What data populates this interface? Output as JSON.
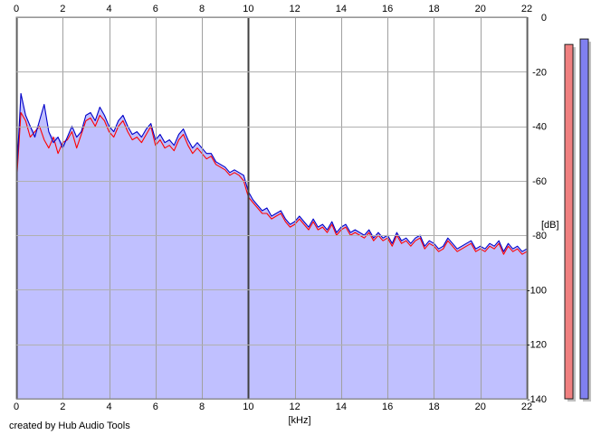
{
  "credit": "created by Hub Audio Tools",
  "chart_data": {
    "type": "area",
    "xlabel": "[kHz]",
    "ylabel": "[dB]",
    "xlim": [
      0,
      22
    ],
    "ylim": [
      -140,
      0
    ],
    "x_ticks": [
      "0",
      "2",
      "4",
      "6",
      "8",
      "10",
      "12",
      "14",
      "16",
      "18",
      "20",
      "22"
    ],
    "y_ticks": [
      "0",
      "-20",
      "-40",
      "-60",
      "-80",
      "-100",
      "-120",
      "-140"
    ],
    "grid": true,
    "background_color": "#ffffff",
    "fill_color": "#c0c0ff",
    "series": [
      {
        "color": "#ff0000",
        "x": [
          0.0,
          0.2,
          0.4,
          0.6,
          0.8,
          1.0,
          1.2,
          1.4,
          1.6,
          1.8,
          2.0,
          2.2,
          2.4,
          2.6,
          2.8,
          3.0,
          3.2,
          3.4,
          3.6,
          3.8,
          4.0,
          4.2,
          4.4,
          4.6,
          4.8,
          5.0,
          5.2,
          5.4,
          5.6,
          5.8,
          6.0,
          6.2,
          6.4,
          6.6,
          6.8,
          7.0,
          7.2,
          7.4,
          7.6,
          7.8,
          8.0,
          8.2,
          8.4,
          8.6,
          8.8,
          9.0,
          9.2,
          9.4,
          9.6,
          9.8,
          10.0,
          10.2,
          10.4,
          10.6,
          10.8,
          11.0,
          11.2,
          11.4,
          11.6,
          11.8,
          12.0,
          12.2,
          12.4,
          12.6,
          12.8,
          13.0,
          13.2,
          13.4,
          13.6,
          13.8,
          14.0,
          14.2,
          14.4,
          14.6,
          14.8,
          15.0,
          15.2,
          15.4,
          15.6,
          15.8,
          16.0,
          16.2,
          16.4,
          16.6,
          16.8,
          17.0,
          17.2,
          17.4,
          17.6,
          17.8,
          18.0,
          18.2,
          18.4,
          18.6,
          18.8,
          19.0,
          19.2,
          19.4,
          19.6,
          19.8,
          20.0,
          20.2,
          20.4,
          20.6,
          20.8,
          21.0,
          21.2,
          21.4,
          21.6,
          21.8,
          22.0
        ],
        "values": [
          -62,
          -35,
          -38,
          -44,
          -42,
          -40,
          -45,
          -48,
          -44,
          -50,
          -46,
          -45,
          -42,
          -48,
          -43,
          -38,
          -37,
          -40,
          -36,
          -38,
          -42,
          -44,
          -40,
          -38,
          -42,
          -45,
          -44,
          -46,
          -43,
          -40,
          -47,
          -45,
          -48,
          -47,
          -49,
          -45,
          -43,
          -47,
          -50,
          -48,
          -50,
          -52,
          -51,
          -54,
          -55,
          -56,
          -58,
          -57,
          -58,
          -60,
          -66,
          -68,
          -70,
          -72,
          -72,
          -74,
          -73,
          -72,
          -75,
          -77,
          -76,
          -74,
          -76,
          -78,
          -75,
          -78,
          -77,
          -79,
          -76,
          -80,
          -78,
          -77,
          -80,
          -79,
          -80,
          -81,
          -79,
          -82,
          -80,
          -82,
          -81,
          -84,
          -80,
          -83,
          -82,
          -84,
          -82,
          -81,
          -85,
          -83,
          -84,
          -86,
          -85,
          -82,
          -84,
          -86,
          -85,
          -84,
          -83,
          -86,
          -85,
          -86,
          -84,
          -85,
          -83,
          -87,
          -84,
          -86,
          -85,
          -87,
          -86
        ]
      },
      {
        "color": "#0000c8",
        "x": [
          0.0,
          0.2,
          0.4,
          0.6,
          0.8,
          1.0,
          1.2,
          1.4,
          1.6,
          1.8,
          2.0,
          2.2,
          2.4,
          2.6,
          2.8,
          3.0,
          3.2,
          3.4,
          3.6,
          3.8,
          4.0,
          4.2,
          4.4,
          4.6,
          4.8,
          5.0,
          5.2,
          5.4,
          5.6,
          5.8,
          6.0,
          6.2,
          6.4,
          6.6,
          6.8,
          7.0,
          7.2,
          7.4,
          7.6,
          7.8,
          8.0,
          8.2,
          8.4,
          8.6,
          8.8,
          9.0,
          9.2,
          9.4,
          9.6,
          9.8,
          10.0,
          10.2,
          10.4,
          10.6,
          10.8,
          11.0,
          11.2,
          11.4,
          11.6,
          11.8,
          12.0,
          12.2,
          12.4,
          12.6,
          12.8,
          13.0,
          13.2,
          13.4,
          13.6,
          13.8,
          14.0,
          14.2,
          14.4,
          14.6,
          14.8,
          15.0,
          15.2,
          15.4,
          15.6,
          15.8,
          16.0,
          16.2,
          16.4,
          16.6,
          16.8,
          17.0,
          17.2,
          17.4,
          17.6,
          17.8,
          18.0,
          18.2,
          18.4,
          18.6,
          18.8,
          19.0,
          19.2,
          19.4,
          19.6,
          19.8,
          20.0,
          20.2,
          20.4,
          20.6,
          20.8,
          21.0,
          21.2,
          21.4,
          21.6,
          21.8,
          22.0
        ],
        "values": [
          -60,
          -28,
          -36,
          -40,
          -44,
          -38,
          -32,
          -42,
          -46,
          -44,
          -48,
          -44,
          -40,
          -44,
          -42,
          -36,
          -35,
          -38,
          -33,
          -36,
          -40,
          -42,
          -38,
          -36,
          -40,
          -43,
          -42,
          -44,
          -41,
          -39,
          -45,
          -43,
          -46,
          -45,
          -47,
          -43,
          -41,
          -45,
          -48,
          -46,
          -48,
          -50,
          -50,
          -53,
          -54,
          -55,
          -57,
          -56,
          -57,
          -58,
          -64,
          -67,
          -69,
          -71,
          -70,
          -73,
          -72,
          -71,
          -74,
          -76,
          -75,
          -73,
          -75,
          -77,
          -74,
          -77,
          -76,
          -78,
          -75,
          -79,
          -77,
          -76,
          -79,
          -78,
          -79,
          -80,
          -78,
          -81,
          -79,
          -81,
          -80,
          -83,
          -79,
          -82,
          -81,
          -83,
          -81,
          -80,
          -84,
          -82,
          -83,
          -85,
          -84,
          -81,
          -83,
          -85,
          -84,
          -83,
          -82,
          -85,
          -84,
          -85,
          -83,
          -84,
          -82,
          -86,
          -83,
          -85,
          -84,
          -86,
          -85
        ]
      }
    ],
    "level_meters": [
      {
        "color": "#f08080",
        "level_db": -10
      },
      {
        "color": "#8080f0",
        "level_db": -8
      }
    ]
  }
}
